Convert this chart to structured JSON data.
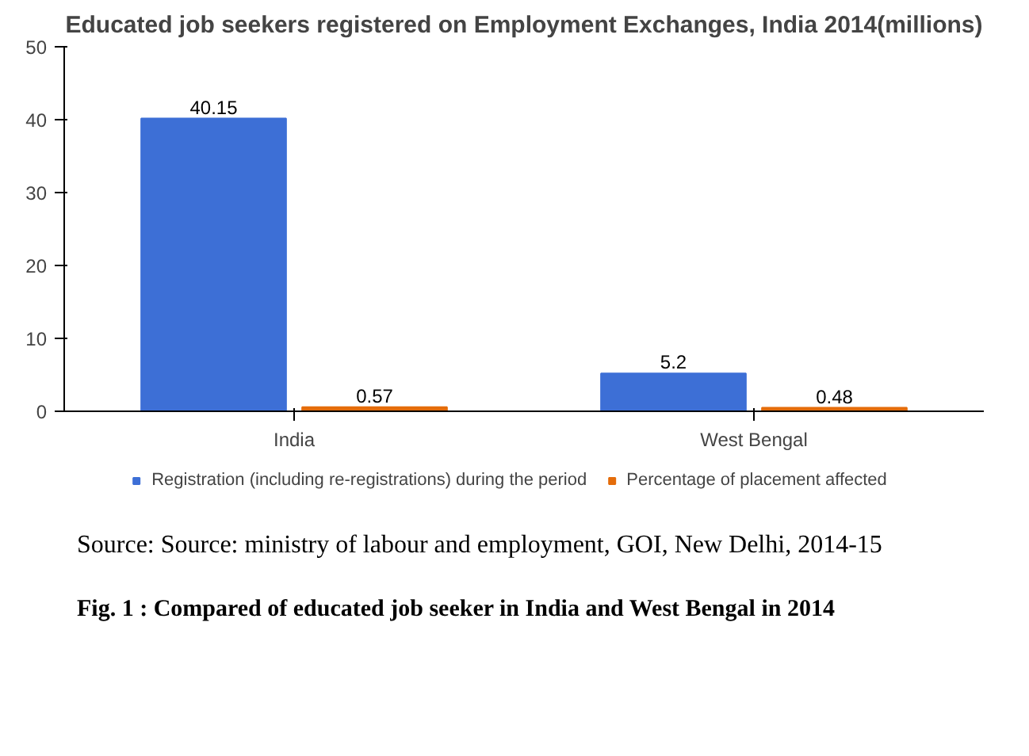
{
  "chart_data": {
    "type": "bar",
    "title": "Educated job seekers registered on Employment Exchanges, India 2014(millions)",
    "categories": [
      "India",
      "West Bengal"
    ],
    "series": [
      {
        "name": "Registration (including re-registrations) during the period",
        "color": "#3d6fd6",
        "values": [
          40.15,
          5.2
        ]
      },
      {
        "name": "Percentage of placement affected",
        "color": "#e46c0a",
        "values": [
          0.57,
          0.48
        ]
      }
    ],
    "ylim": [
      0,
      50
    ],
    "yticks": [
      0,
      10,
      20,
      30,
      40,
      50
    ],
    "grid": false,
    "legend": "bottom",
    "data_labels": true,
    "annotations": [
      "Source: Source: ministry of labour and employment, GOI, New Delhi, 2014-15",
      "Fig. 1 : Compared of educated job seeker in India and West Bengal in 2014"
    ]
  }
}
